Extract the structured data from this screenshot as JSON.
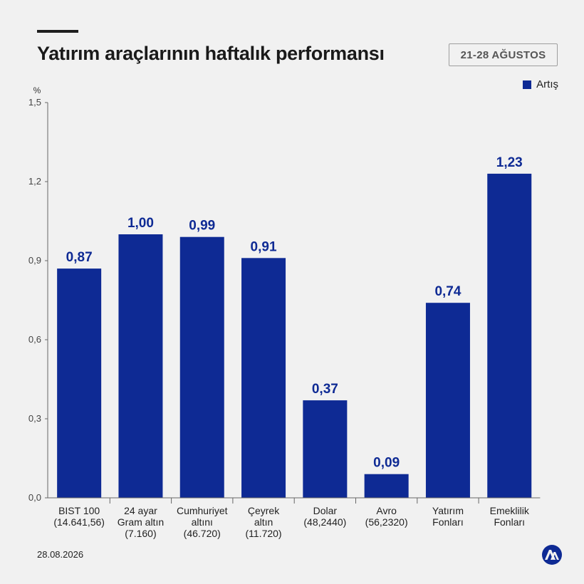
{
  "header": {
    "title": "Yatırım araçlarının haftalık performansı",
    "date_range": "21-28 AĞUSTOS"
  },
  "legend": {
    "label": "Artış",
    "position": "top-right"
  },
  "footer": {
    "date": "28.08.2026",
    "logo": "aa-logo-icon"
  },
  "colors": {
    "bar": "#0e2a94",
    "label": "#0e2a94",
    "axis": "#666666",
    "background": "#f1f1f1"
  },
  "chart_data": {
    "type": "bar",
    "ylabel": "%",
    "ylim": [
      0,
      1.5
    ],
    "yticks": [
      "0,0",
      "0,3",
      "0,6",
      "0,9",
      "1,2",
      "1,5"
    ],
    "grid": false,
    "categories": [
      [
        "BIST 100",
        "(14.641,56)"
      ],
      [
        "24 ayar",
        "Gram altın",
        "(7.160)"
      ],
      [
        "Cumhuriyet",
        "altını",
        "(46.720)"
      ],
      [
        "Çeyrek",
        "altın",
        "(11.720)"
      ],
      [
        "Dolar",
        "(48,2440)"
      ],
      [
        "Avro",
        "(56,2320)"
      ],
      [
        "Yatırım",
        "Fonları"
      ],
      [
        "Emeklilik",
        "Fonları"
      ]
    ],
    "series": [
      {
        "name": "Artış",
        "values": [
          0.87,
          1.0,
          0.99,
          0.91,
          0.37,
          0.09,
          0.74,
          1.23
        ],
        "labels": [
          "0,87",
          "1,00",
          "0,99",
          "0,91",
          "0,37",
          "0,09",
          "0,74",
          "1,23"
        ]
      }
    ]
  }
}
